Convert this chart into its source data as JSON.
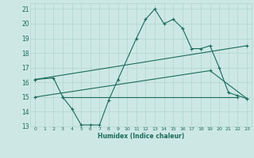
{
  "xlabel": "Humidex (Indice chaleur)",
  "xlim": [
    -0.5,
    23.5
  ],
  "ylim": [
    13,
    21.4
  ],
  "xticks": [
    0,
    1,
    2,
    3,
    4,
    5,
    6,
    7,
    8,
    9,
    10,
    11,
    12,
    13,
    14,
    15,
    16,
    17,
    18,
    19,
    20,
    21,
    22,
    23
  ],
  "yticks": [
    13,
    14,
    15,
    16,
    17,
    18,
    19,
    20,
    21
  ],
  "bg_color": "#cde8e4",
  "grid_color": "#b0d5cf",
  "line_color": "#1a6b5a",
  "line1_x": [
    0,
    2,
    3,
    4,
    5,
    6,
    7,
    8,
    9,
    11,
    12,
    13,
    14,
    15,
    16,
    17,
    18,
    19,
    20,
    21,
    22,
    23
  ],
  "line1_y": [
    16.2,
    16.3,
    15.0,
    14.2,
    13.1,
    13.1,
    13.1,
    14.8,
    16.2,
    19.0,
    20.3,
    21.0,
    20.0,
    20.3,
    19.7,
    18.3,
    18.3,
    18.5,
    17.0,
    15.3,
    15.1,
    14.9
  ],
  "line2_x": [
    0,
    23
  ],
  "line2_y": [
    16.2,
    18.5
  ],
  "line3_x": [
    0,
    19,
    23
  ],
  "line3_y": [
    15.0,
    16.8,
    14.9
  ],
  "line4_x": [
    3,
    22
  ],
  "line4_y": [
    15.0,
    15.0
  ]
}
